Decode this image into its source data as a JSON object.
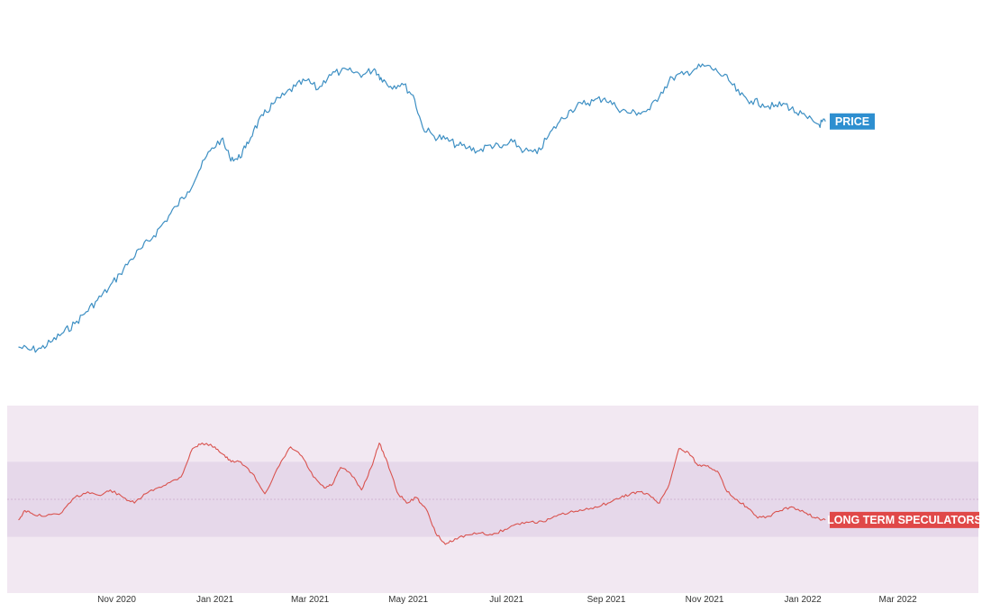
{
  "chart_data": [
    {
      "type": "line",
      "series": [
        {
          "name": "PRICE",
          "color": "#3d8fc3",
          "x": [
            "2020-09-01",
            "2020-09-08",
            "2020-09-15",
            "2020-09-22",
            "2020-09-29",
            "2020-10-06",
            "2020-10-13",
            "2020-10-20",
            "2020-10-27",
            "2020-11-03",
            "2020-11-10",
            "2020-11-17",
            "2020-11-24",
            "2020-12-01",
            "2020-12-08",
            "2020-12-15",
            "2020-12-22",
            "2020-12-29",
            "2021-01-05",
            "2021-01-10",
            "2021-01-15",
            "2021-01-20",
            "2021-01-25",
            "2021-01-31",
            "2021-02-06",
            "2021-02-13",
            "2021-02-20",
            "2021-02-27",
            "2021-03-06",
            "2021-03-13",
            "2021-03-20",
            "2021-03-27",
            "2021-04-03",
            "2021-04-10",
            "2021-04-14",
            "2021-04-20",
            "2021-04-27",
            "2021-05-04",
            "2021-05-10",
            "2021-05-17",
            "2021-05-24",
            "2021-05-31",
            "2021-06-07",
            "2021-06-14",
            "2021-06-21",
            "2021-06-28",
            "2021-07-05",
            "2021-07-12",
            "2021-07-20",
            "2021-07-27",
            "2021-08-03",
            "2021-08-10",
            "2021-08-17",
            "2021-08-24",
            "2021-08-31",
            "2021-09-07",
            "2021-09-14",
            "2021-09-21",
            "2021-09-28",
            "2021-10-05",
            "2021-10-12",
            "2021-10-19",
            "2021-10-26",
            "2021-11-02",
            "2021-11-09",
            "2021-11-16",
            "2021-11-23",
            "2021-11-30",
            "2021-12-07",
            "2021-12-14",
            "2021-12-21",
            "2021-12-28",
            "2022-01-04",
            "2022-01-11",
            "2022-01-15"
          ],
          "y": [
            0.04,
            0.03,
            0.035,
            0.06,
            0.09,
            0.12,
            0.16,
            0.2,
            0.24,
            0.29,
            0.34,
            0.38,
            0.42,
            0.47,
            0.52,
            0.57,
            0.64,
            0.71,
            0.75,
            0.69,
            0.68,
            0.72,
            0.78,
            0.83,
            0.87,
            0.9,
            0.93,
            0.95,
            0.92,
            0.97,
            0.98,
            0.98,
            0.97,
            0.99,
            0.96,
            0.93,
            0.94,
            0.9,
            0.79,
            0.76,
            0.75,
            0.73,
            0.72,
            0.71,
            0.73,
            0.72,
            0.74,
            0.71,
            0.7,
            0.76,
            0.81,
            0.85,
            0.87,
            0.88,
            0.89,
            0.86,
            0.84,
            0.84,
            0.85,
            0.91,
            0.96,
            0.97,
            0.99,
            1.0,
            0.98,
            0.95,
            0.9,
            0.88,
            0.87,
            0.86,
            0.87,
            0.84,
            0.82,
            0.8,
            0.81
          ]
        }
      ],
      "badge": {
        "label": "PRICE",
        "color": "#2e8fd0"
      }
    },
    {
      "type": "line",
      "series": [
        {
          "name": "LONG TERM SPECULATORS",
          "color": "#d9534f",
          "x": [
            "2020-09-01",
            "2020-09-05",
            "2020-09-10",
            "2020-09-18",
            "2020-09-28",
            "2020-10-06",
            "2020-10-14",
            "2020-10-22",
            "2020-10-28",
            "2020-11-05",
            "2020-11-12",
            "2020-11-19",
            "2020-11-26",
            "2020-12-04",
            "2020-12-11",
            "2020-12-18",
            "2020-12-24",
            "2021-01-01",
            "2021-01-06",
            "2021-01-11",
            "2021-01-17",
            "2021-01-24",
            "2021-02-01",
            "2021-02-10",
            "2021-02-17",
            "2021-02-24",
            "2021-03-03",
            "2021-03-10",
            "2021-03-15",
            "2021-03-20",
            "2021-03-26",
            "2021-04-02",
            "2021-04-08",
            "2021-04-13",
            "2021-04-18",
            "2021-04-24",
            "2021-04-30",
            "2021-05-06",
            "2021-05-12",
            "2021-05-18",
            "2021-05-24",
            "2021-05-30",
            "2021-06-07",
            "2021-06-15",
            "2021-06-22",
            "2021-06-30",
            "2021-07-08",
            "2021-07-16",
            "2021-07-24",
            "2021-08-01",
            "2021-08-09",
            "2021-08-17",
            "2021-08-25",
            "2021-09-02",
            "2021-09-10",
            "2021-09-16",
            "2021-09-22",
            "2021-09-28",
            "2021-10-04",
            "2021-10-10",
            "2021-10-16",
            "2021-10-22",
            "2021-10-28",
            "2021-11-03",
            "2021-11-09",
            "2021-11-15",
            "2021-11-21",
            "2021-11-27",
            "2021-12-04",
            "2021-12-11",
            "2021-12-18",
            "2021-12-25",
            "2022-01-02",
            "2022-01-09",
            "2022-01-15"
          ],
          "y": [
            -0.55,
            -0.3,
            -0.4,
            -0.45,
            -0.35,
            0.05,
            0.2,
            0.1,
            0.25,
            0.05,
            -0.1,
            0.15,
            0.3,
            0.45,
            0.6,
            1.35,
            1.5,
            1.4,
            1.2,
            1.0,
            1.0,
            0.7,
            0.15,
            0.9,
            1.4,
            1.15,
            0.6,
            0.3,
            0.4,
            0.85,
            0.7,
            0.25,
            0.85,
            1.5,
            1.0,
            0.2,
            -0.1,
            0.05,
            -0.25,
            -0.9,
            -1.2,
            -1.05,
            -0.95,
            -0.9,
            -0.95,
            -0.8,
            -0.65,
            -0.6,
            -0.6,
            -0.45,
            -0.35,
            -0.3,
            -0.2,
            -0.1,
            0.05,
            0.15,
            0.2,
            0.1,
            -0.1,
            0.4,
            1.35,
            1.25,
            0.9,
            0.9,
            0.75,
            0.2,
            0.0,
            -0.2,
            -0.5,
            -0.45,
            -0.3,
            -0.2,
            -0.35,
            -0.5,
            -0.55
          ]
        }
      ],
      "badge": {
        "label": "LONG TERM SPECULATORS",
        "color": "#e04848"
      },
      "bands": {
        "outer_color": "#f2e8f2",
        "inner_color": "#e6d8ea",
        "inner_range": [
          -1.0,
          1.0
        ],
        "midline": 0
      },
      "ylim": [
        -2.5,
        2.5
      ]
    }
  ],
  "x_axis": {
    "range": [
      "2020-08-25",
      "2022-04-20"
    ],
    "ticks": [
      {
        "date": "2020-11-01",
        "label": "Nov 2020"
      },
      {
        "date": "2021-01-01",
        "label": "Jan 2021"
      },
      {
        "date": "2021-03-01",
        "label": "Mar 2021"
      },
      {
        "date": "2021-05-01",
        "label": "May 2021"
      },
      {
        "date": "2021-07-01",
        "label": "Jul 2021"
      },
      {
        "date": "2021-09-01",
        "label": "Sep 2021"
      },
      {
        "date": "2021-11-01",
        "label": "Nov 2021"
      },
      {
        "date": "2022-01-01",
        "label": "Jan 2022"
      },
      {
        "date": "2022-03-01",
        "label": "Mar 2022"
      }
    ]
  }
}
